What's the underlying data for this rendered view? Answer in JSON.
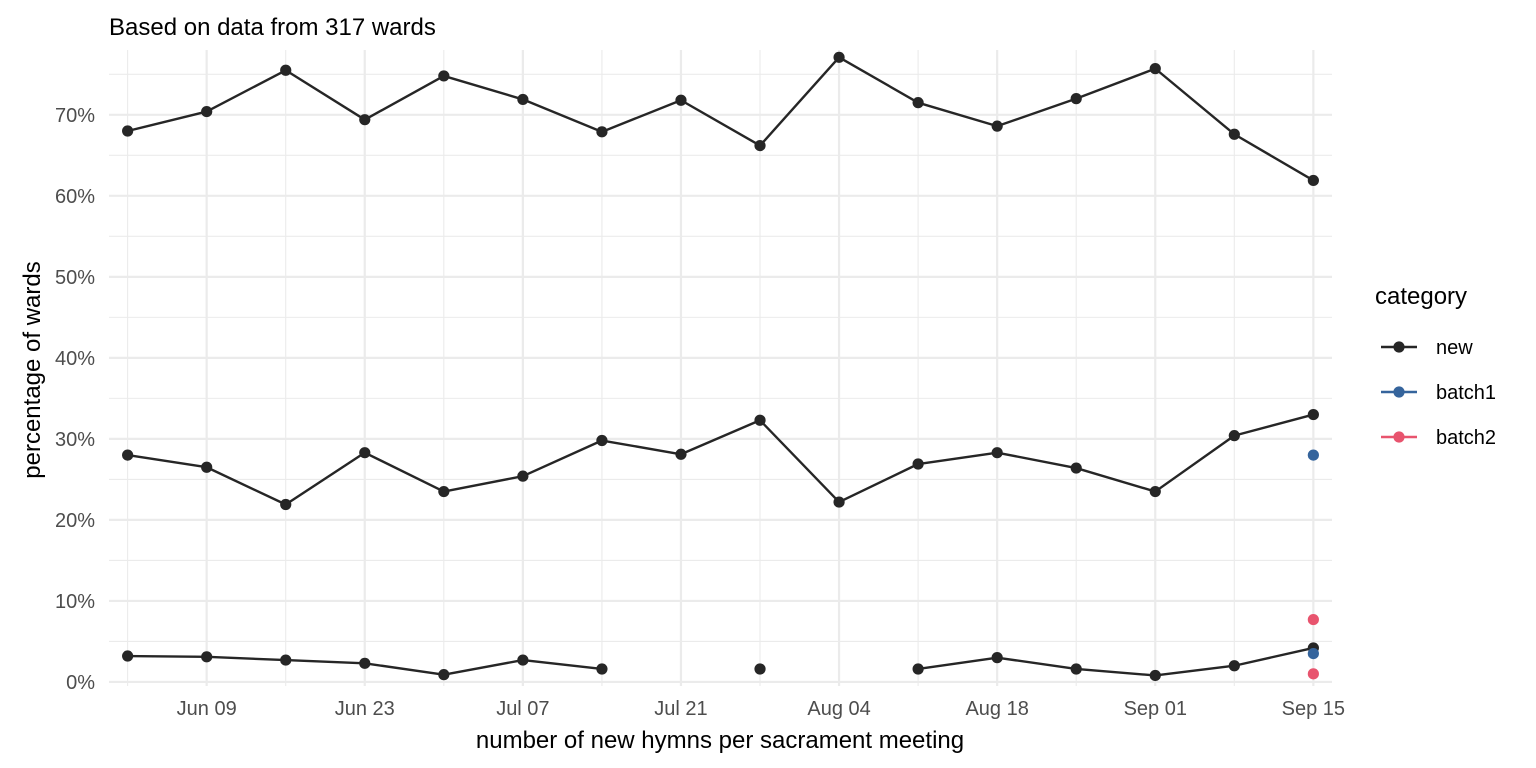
{
  "chart_data": {
    "type": "line",
    "title": "Based on data from 317 wards",
    "xlabel": "number of new hymns per sacrament meeting",
    "ylabel": "percentage of wards",
    "x": [
      "2024-06-02",
      "2024-06-09",
      "2024-06-16",
      "2024-06-23",
      "2024-06-30",
      "2024-07-07",
      "2024-07-14",
      "2024-07-21",
      "2024-07-28",
      "2024-08-04",
      "2024-08-11",
      "2024-08-18",
      "2024-08-25",
      "2024-09-01",
      "2024-09-08",
      "2024-09-15"
    ],
    "x_tick_labels": [
      "Jun 09",
      "Jun 23",
      "Jul 07",
      "Jul 21",
      "Aug 04",
      "Aug 18",
      "Sep 01",
      "Sep 15"
    ],
    "x_tick_dates": [
      "2024-06-09",
      "2024-06-23",
      "2024-07-07",
      "2024-07-21",
      "2024-08-04",
      "2024-08-18",
      "2024-09-01",
      "2024-09-15"
    ],
    "ylim": [
      0,
      78
    ],
    "y_ticks": [
      0,
      10,
      20,
      30,
      40,
      50,
      60,
      70
    ],
    "y_tick_labels": [
      "0%",
      "10%",
      "20%",
      "30%",
      "40%",
      "50%",
      "60%",
      "70%"
    ],
    "legend_title": "category",
    "legend_position": "right",
    "series": [
      {
        "name": "new",
        "category": "new",
        "color": "#262626",
        "values": [
          68.0,
          70.4,
          75.5,
          69.4,
          74.8,
          71.9,
          67.9,
          71.8,
          66.2,
          77.1,
          71.5,
          68.6,
          72.0,
          75.7,
          67.6,
          61.9
        ]
      },
      {
        "name": "new",
        "category": "new",
        "color": "#262626",
        "values": [
          28.0,
          26.5,
          21.9,
          28.3,
          23.5,
          25.4,
          29.8,
          28.1,
          32.3,
          22.2,
          26.9,
          28.3,
          26.4,
          23.5,
          30.4,
          33.0
        ]
      },
      {
        "name": "new",
        "category": "new",
        "color": "#262626",
        "values": [
          3.2,
          3.1,
          2.7,
          2.3,
          0.9,
          2.7,
          1.6,
          null,
          1.6,
          null,
          1.6,
          3.0,
          1.6,
          0.8,
          2.0,
          4.2
        ]
      },
      {
        "name": "batch1",
        "category": "batch1",
        "color": "#35649c",
        "values": [
          null,
          null,
          null,
          null,
          null,
          null,
          null,
          null,
          null,
          null,
          null,
          null,
          null,
          null,
          null,
          28.0
        ]
      },
      {
        "name": "batch1",
        "category": "batch1",
        "color": "#35649c",
        "values": [
          null,
          null,
          null,
          null,
          null,
          null,
          null,
          null,
          null,
          null,
          null,
          null,
          null,
          null,
          null,
          3.5
        ]
      },
      {
        "name": "batch2",
        "category": "batch2",
        "color": "#e8546e",
        "values": [
          null,
          null,
          null,
          null,
          null,
          null,
          null,
          null,
          null,
          null,
          null,
          null,
          null,
          null,
          null,
          7.7
        ]
      },
      {
        "name": "batch2",
        "category": "batch2",
        "color": "#e8546e",
        "values": [
          null,
          null,
          null,
          null,
          null,
          null,
          null,
          null,
          null,
          null,
          null,
          null,
          null,
          null,
          null,
          1.0
        ]
      }
    ],
    "legend": [
      {
        "label": "new",
        "color": "#262626"
      },
      {
        "label": "batch1",
        "color": "#35649c"
      },
      {
        "label": "batch2",
        "color": "#e8546e"
      }
    ]
  }
}
